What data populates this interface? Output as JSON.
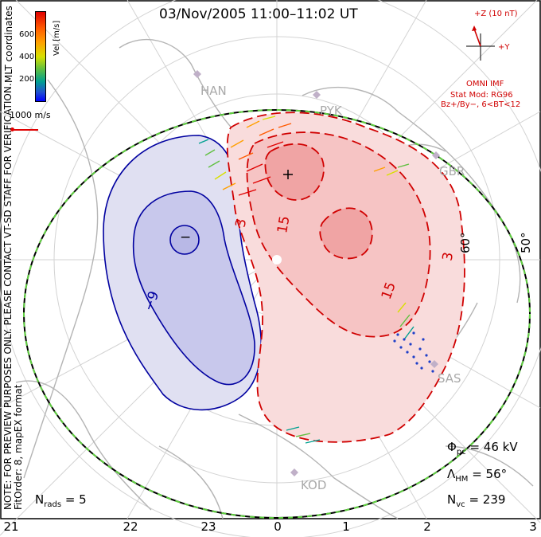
{
  "title": "03/Nov/2005 11:00–11:02 UT",
  "coordinates_label": "MLT coordinates",
  "preview_note": {
    "line1": "NOTE: FOR PREVIEW PURPOSES ONLY. PLEASE CONTACT VT-SD STAFF FOR VERIFICATION.",
    "line2": "FitOrder: 8,  mapEX format"
  },
  "scale_vector_label": "1000 m/s",
  "colorbar": {
    "label": "Vel [m/s]",
    "ticks": [
      "600",
      "400",
      "200"
    ]
  },
  "imf": {
    "bz_label": "+Z (10 nT)",
    "by_label": "+Y",
    "source": "OMNI IMF",
    "model": "Stat Mod: RG96",
    "condition": "Bz+/By−, 6<BT<12"
  },
  "stats": {
    "phi_pc_symbol": "Φ",
    "phi_pc_sub": "pc",
    "phi_pc_value": "= 46 kV",
    "lambda_hm_symbol": "Λ",
    "lambda_hm_sub": "HM",
    "lambda_hm_value": "= 56°",
    "n_vc_symbol": "N",
    "n_vc_sub": "vc",
    "n_vc_value": "= 239",
    "n_rads_symbol": "N",
    "n_rads_sub": "rads",
    "n_rads_value": "= 5"
  },
  "radar_sites": [
    "HAN",
    "PYK",
    "GBR",
    "SAS",
    "KOD"
  ],
  "latitude_labels": [
    "60°",
    "50°"
  ],
  "mlt_ticks": [
    "21",
    "22",
    "23",
    "0",
    "1",
    "2",
    "3"
  ],
  "contour_labels": {
    "neg_small": "−",
    "neg_large": "−9",
    "pos_3": "3",
    "pos_15a": "15",
    "pos_15b": "15",
    "pos_3b": "3"
  },
  "colors": {
    "negative_fill": "#c8c8ec",
    "negative_line": "#0000a0",
    "positive_fill": "#f6b4b4",
    "positive_line": "#d00000",
    "grid": "#d0d0d0",
    "coast": "#b0b0b0",
    "hm_boundary": "#60d040"
  }
}
